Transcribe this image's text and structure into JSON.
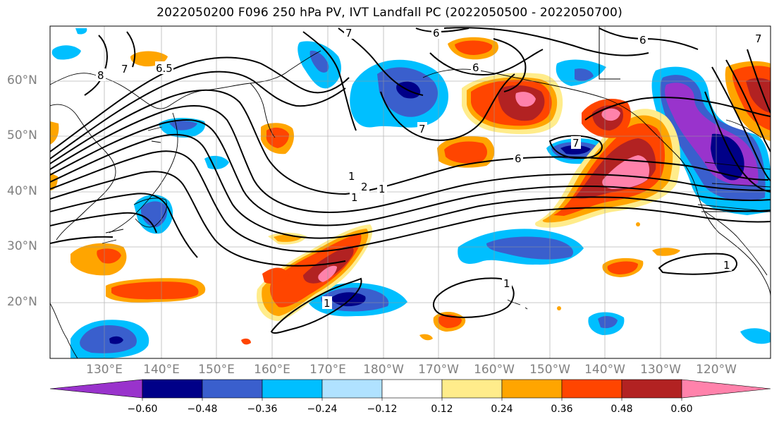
{
  "title": "2022050200 F096 250 hPa PV, IVT Landfall PC (2022050500 - 2022050700)",
  "map": {
    "lat_labels": [
      "60°N",
      "50°N",
      "40°N",
      "30°N",
      "20°N"
    ],
    "lon_labels": [
      "130°E",
      "140°E",
      "150°E",
      "160°E",
      "170°E",
      "180°W",
      "170°W",
      "160°W",
      "150°W",
      "140°W",
      "130°W",
      "120°W"
    ],
    "contour_labels": [
      "8",
      "7",
      "6.5",
      "7",
      "6",
      "7",
      "6",
      "1",
      "7",
      "6",
      "7",
      "6",
      "1",
      "2",
      "1",
      "1",
      "1",
      "1"
    ]
  },
  "colorbar": {
    "tick_labels": [
      "−0.60",
      "−0.48",
      "−0.36",
      "−0.24",
      "−0.12",
      "0.12",
      "0.24",
      "0.36",
      "0.48",
      "0.60"
    ],
    "colors": [
      "#9933cc",
      "#000088",
      "#3a5fcd",
      "#00bfff",
      "#b0e2ff",
      "#ffffff",
      "#ffec8b",
      "#ffa500",
      "#ff4500",
      "#b22222",
      "#ff82ab",
      "#ff82ab"
    ]
  }
}
